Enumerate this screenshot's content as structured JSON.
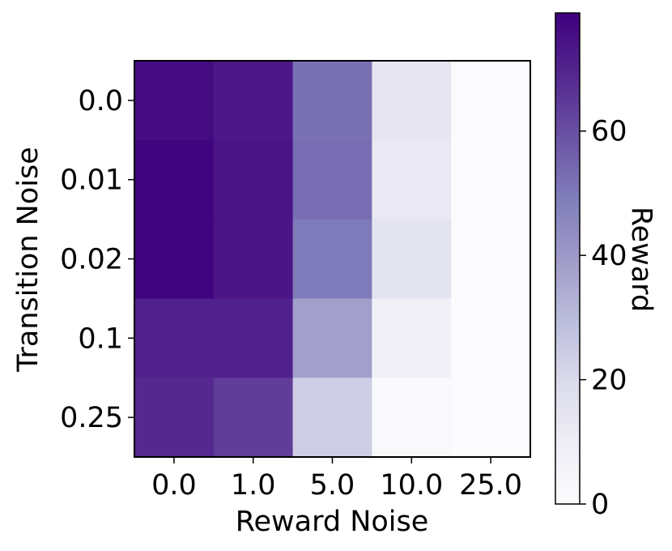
{
  "chart_data": {
    "type": "heatmap",
    "title": "",
    "xlabel": "Reward Noise",
    "ylabel": "Transition Noise",
    "x_categories": [
      "0.0",
      "1.0",
      "5.0",
      "10.0",
      "25.0"
    ],
    "y_categories": [
      "0.0",
      "0.01",
      "0.02",
      "0.1",
      "0.25"
    ],
    "values": [
      [
        76,
        73,
        52,
        14,
        1
      ],
      [
        78,
        74,
        53,
        12,
        1
      ],
      [
        78,
        74,
        50,
        15,
        1
      ],
      [
        71,
        71,
        38,
        8,
        0
      ],
      [
        69,
        64,
        24,
        2,
        0
      ]
    ],
    "colorbar": {
      "label": "Reward",
      "range": [
        0,
        79
      ],
      "ticks": [
        "0",
        "20",
        "40",
        "60"
      ],
      "tick_values": [
        0,
        20,
        40,
        60
      ],
      "colormap": "Purples",
      "color_low": "#fcfbfd",
      "color_high": "#3f007d"
    },
    "grid": false
  }
}
